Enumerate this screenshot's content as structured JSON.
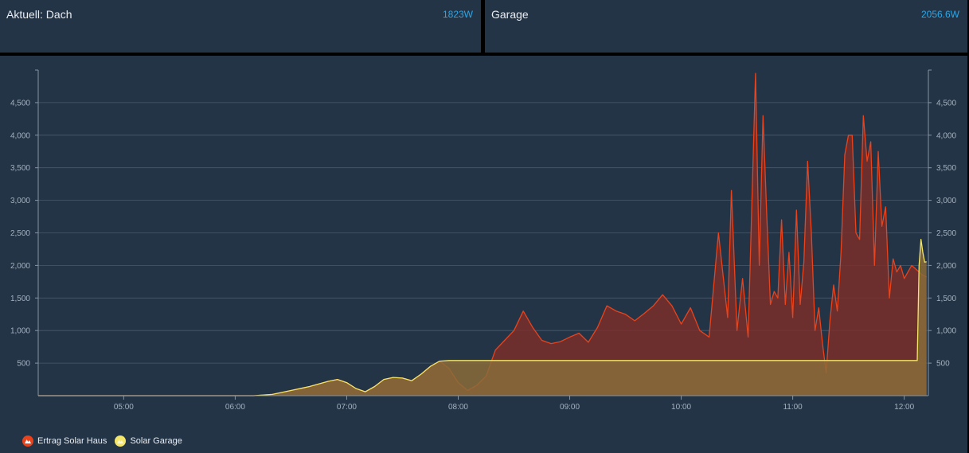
{
  "tiles": {
    "left": {
      "title": "Aktuell: Dach",
      "value": "1823W"
    },
    "right": {
      "title": "Garage",
      "value": "2056.6W"
    }
  },
  "colors": {
    "panel": "#243447",
    "haus_line": "#e8431c",
    "haus_fill": "#7a2f2a",
    "garage_line": "#f4e66a",
    "garage_fill": "#8a6c3a",
    "accent_value": "#2aa7e8"
  },
  "chart_data": {
    "type": "area",
    "title": "",
    "xlabel": "",
    "ylabel": "",
    "ylim": [
      0,
      5000
    ],
    "yticks": [
      "500",
      "1,000",
      "1,500",
      "2,000",
      "2,500",
      "3,000",
      "3,500",
      "4,000",
      "4,500"
    ],
    "ytick_values": [
      500,
      1000,
      1500,
      2000,
      2500,
      3000,
      3500,
      4000,
      4500
    ],
    "xlim": [
      "04:14",
      "12:13"
    ],
    "xticks": [
      "05:00",
      "06:00",
      "07:00",
      "08:00",
      "09:00",
      "10:00",
      "11:00",
      "12:00"
    ],
    "grid": "horizontal",
    "legend": "bottom-left",
    "series": [
      {
        "name": "Ertrag Solar Haus",
        "x": [
          "04:14",
          "06:10",
          "06:20",
          "06:30",
          "06:40",
          "06:50",
          "06:55",
          "07:00",
          "07:05",
          "07:10",
          "07:15",
          "07:20",
          "07:25",
          "07:30",
          "07:35",
          "07:40",
          "07:45",
          "07:50",
          "07:55",
          "08:00",
          "08:05",
          "08:10",
          "08:15",
          "08:20",
          "08:25",
          "08:30",
          "08:35",
          "08:40",
          "08:45",
          "08:50",
          "08:55",
          "09:00",
          "09:05",
          "09:10",
          "09:15",
          "09:20",
          "09:25",
          "09:30",
          "09:35",
          "09:40",
          "09:45",
          "09:50",
          "09:55",
          "10:00",
          "10:05",
          "10:10",
          "10:15",
          "10:20",
          "10:25",
          "10:27",
          "10:30",
          "10:33",
          "10:36",
          "10:40",
          "10:42",
          "10:44",
          "10:46",
          "10:48",
          "10:50",
          "10:52",
          "10:54",
          "10:56",
          "10:58",
          "11:00",
          "11:02",
          "11:04",
          "11:06",
          "11:08",
          "11:10",
          "11:12",
          "11:14",
          "11:16",
          "11:18",
          "11:20",
          "11:22",
          "11:24",
          "11:26",
          "11:28",
          "11:30",
          "11:32",
          "11:34",
          "11:36",
          "11:38",
          "11:40",
          "11:42",
          "11:44",
          "11:46",
          "11:48",
          "11:50",
          "11:52",
          "11:54",
          "11:56",
          "11:58",
          "12:00",
          "12:02",
          "12:04",
          "12:06",
          "12:08",
          "12:10",
          "12:12"
        ],
        "y": [
          0,
          0,
          20,
          80,
          140,
          220,
          250,
          200,
          110,
          60,
          140,
          250,
          280,
          270,
          230,
          330,
          450,
          530,
          420,
          200,
          80,
          160,
          300,
          700,
          850,
          1000,
          1300,
          1050,
          850,
          800,
          830,
          900,
          960,
          820,
          1050,
          1380,
          1300,
          1250,
          1150,
          1260,
          1380,
          1550,
          1380,
          1100,
          1350,
          1000,
          900,
          2500,
          1200,
          3150,
          1000,
          1800,
          900,
          4950,
          2000,
          4300,
          2800,
          1400,
          1600,
          1500,
          2700,
          1400,
          2200,
          1200,
          2850,
          1400,
          2050,
          3600,
          2500,
          1000,
          1350,
          800,
          350,
          1150,
          1700,
          1300,
          2200,
          3700,
          4000,
          4000,
          2500,
          2400,
          4300,
          3600,
          3900,
          2000,
          3750,
          2600,
          2900,
          1500,
          2100,
          1900,
          2000,
          1800,
          1900,
          2000,
          1950,
          1900,
          1850,
          1823
        ]
      },
      {
        "name": "Solar Garage",
        "x": [
          "04:14",
          "06:10",
          "06:20",
          "06:30",
          "06:40",
          "06:50",
          "06:55",
          "07:00",
          "07:05",
          "07:10",
          "07:15",
          "07:20",
          "07:25",
          "07:30",
          "07:35",
          "07:40",
          "07:45",
          "07:50",
          "07:55",
          "08:00",
          "12:07",
          "12:08",
          "12:09",
          "12:10",
          "12:11",
          "12:12"
        ],
        "y": [
          0,
          0,
          20,
          80,
          140,
          220,
          250,
          200,
          110,
          60,
          140,
          250,
          280,
          270,
          230,
          330,
          450,
          530,
          540,
          540,
          540,
          2000,
          2400,
          2200,
          2050,
          2056.6
        ]
      }
    ]
  },
  "legend": {
    "haus": "Ertrag Solar Haus",
    "garage": "Solar Garage"
  }
}
